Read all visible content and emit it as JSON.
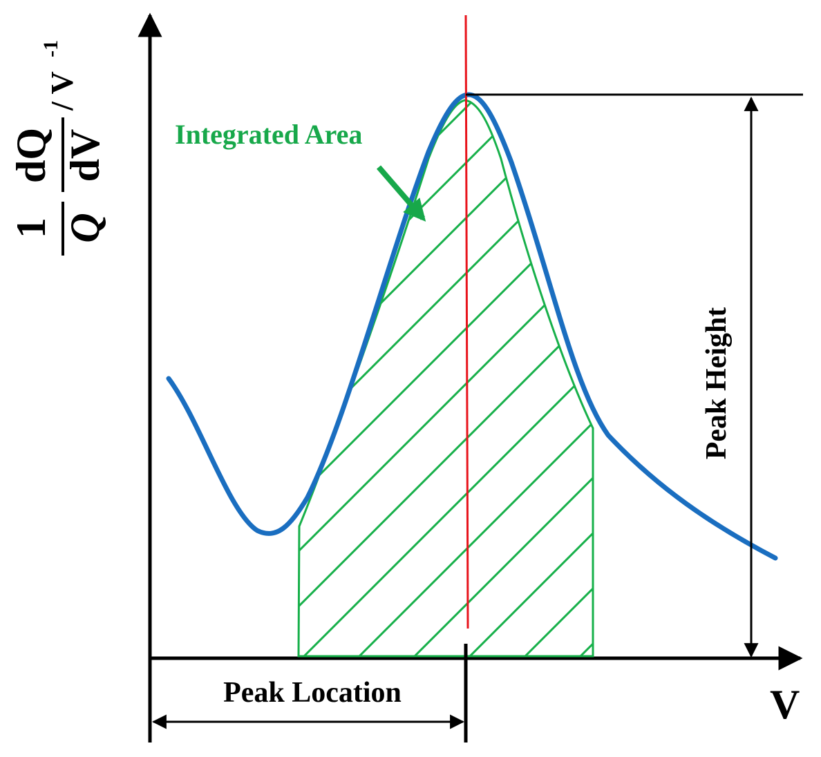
{
  "labels": {
    "y_axis_one": "1",
    "y_axis_q_den": "Q",
    "y_axis_dq": "dQ",
    "y_axis_dv": "dV",
    "y_axis_unit": "/ V",
    "y_axis_unit_exp": "-1",
    "x_axis": "V",
    "integrated_area": "Integrated Area",
    "peak_height": "Peak Height",
    "peak_location": "Peak Location"
  },
  "colors": {
    "curve": "#1a6ec0",
    "hatch": "#17b04a",
    "peak_marker": "#e8141c",
    "axes": "#000000",
    "annotation_text": "#17a84a"
  }
}
